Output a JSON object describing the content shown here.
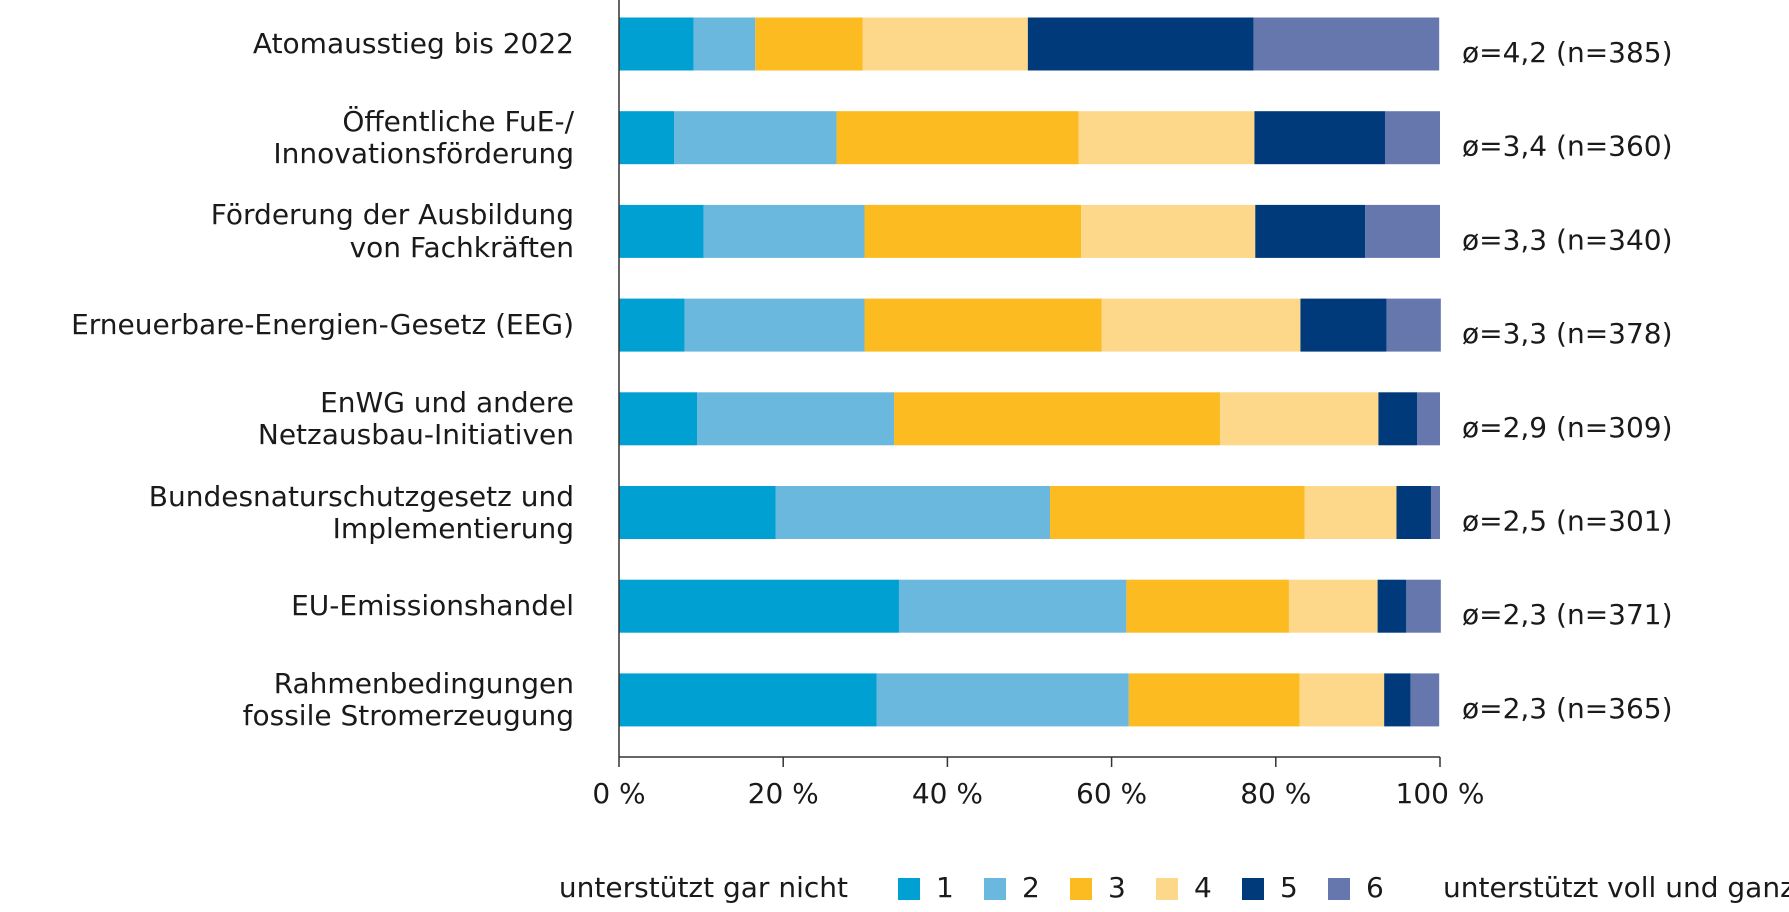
{
  "chart_data": {
    "type": "stacked_barh",
    "categories": [
      "Atomausstieg bis 2022",
      "Öffentliche FuE-/\nInnovationsförderung",
      "Förderung der Ausbildung\nvon Fachkräften",
      "Erneuerbare-Energien-Gesetz (EEG)",
      "EnWG und andere\nNetzausbau-Initiativen",
      "Bundesnaturschutzgesetz und\nImplementierung",
      "EU-Emissionshandel",
      "Rahmenbedingungen\nfossile Stromerzeugung"
    ],
    "series": [
      {
        "name": "1",
        "color": "#00a0d2",
        "values": [
          9.1,
          6.7,
          10.3,
          8.0,
          9.5,
          19.1,
          34.1,
          31.4
        ]
      },
      {
        "name": "2",
        "color": "#6bb8df",
        "values": [
          7.5,
          19.8,
          19.6,
          21.9,
          24.0,
          33.4,
          27.7,
          30.7
        ]
      },
      {
        "name": "3",
        "color": "#fbbb21",
        "values": [
          13.1,
          29.5,
          26.4,
          28.9,
          39.7,
          31.0,
          19.8,
          20.8
        ]
      },
      {
        "name": "4",
        "color": "#fdd78a",
        "values": [
          20.1,
          21.4,
          21.2,
          24.2,
          19.3,
          11.2,
          10.8,
          10.3
        ]
      },
      {
        "name": "5",
        "color": "#003a7a",
        "values": [
          27.5,
          15.9,
          13.4,
          10.5,
          4.7,
          4.2,
          3.5,
          3.2
        ]
      },
      {
        "name": "6",
        "color": "#6577ad",
        "values": [
          22.6,
          6.7,
          9.1,
          6.6,
          2.8,
          1.1,
          4.2,
          3.5
        ]
      }
    ],
    "annotations": [
      "ø=4,2 (n=385)",
      "ø=3,4 (n=360)",
      "ø=3,3 (n=340)",
      "ø=3,3 (n=378)",
      "ø=2,9 (n=309)",
      "ø=2,5 (n=301)",
      "ø=2,3 (n=371)",
      "ø=2,3 (n=365)"
    ],
    "xlim": [
      0,
      100
    ],
    "xticks": [
      {
        "value": 0,
        "label": "0 %"
      },
      {
        "value": 20,
        "label": "20 %"
      },
      {
        "value": 40,
        "label": "40 %"
      },
      {
        "value": 60,
        "label": "60 %"
      },
      {
        "value": 80,
        "label": "80 %"
      },
      {
        "value": 100,
        "label": "100 %"
      }
    ],
    "legend_left": "unterstützt gar nicht",
    "legend_right": "unterstützt voll und ganz",
    "legend": "bottom"
  }
}
